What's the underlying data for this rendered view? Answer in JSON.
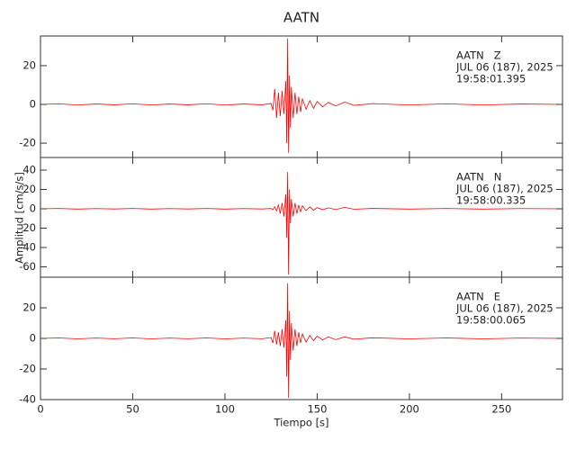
{
  "chart_data": [
    {
      "type": "line",
      "title": "AATN",
      "annotations": [
        "AATN   Z",
        "JUL 06 (187), 2025",
        "19:58:01.395"
      ],
      "x": [
        0,
        10,
        20,
        30,
        40,
        50,
        60,
        70,
        80,
        90,
        100,
        110,
        120,
        125,
        126,
        127,
        128,
        129,
        130,
        131,
        132,
        133,
        133.5,
        134,
        134.5,
        135,
        135.5,
        136,
        137,
        138,
        139,
        140,
        141,
        142,
        144,
        146,
        148,
        150,
        153,
        156,
        160,
        165,
        170,
        180,
        200,
        220,
        240,
        260,
        283
      ],
      "series": [
        {
          "color": "#ff0000",
          "values": [
            0,
            0.3,
            -0.3,
            0.2,
            -0.2,
            0.3,
            -0.3,
            0.2,
            -0.2,
            0.3,
            -0.3,
            0.2,
            -0.2,
            0.5,
            -3,
            8,
            -7,
            6,
            -6,
            7,
            -5,
            12,
            -20,
            34,
            -25,
            15,
            -12,
            9,
            -7,
            6,
            -5,
            4,
            -4,
            3,
            -2.5,
            2,
            -2,
            1.5,
            -1.2,
            1,
            -0.8,
            1.2,
            -0.5,
            0.4,
            -0.3,
            0.3,
            -0.3,
            0.2,
            0
          ]
        }
      ],
      "xlim": [
        0,
        283
      ],
      "xticks": [
        0,
        50,
        100,
        150,
        200,
        250
      ],
      "ylim": [
        -27.4,
        35.3
      ],
      "yticks": [
        -20,
        0,
        20
      ]
    },
    {
      "type": "line",
      "y_label": "Amplitud [cm/s/s]",
      "annotations": [
        "AATN   N",
        "JUL 06 (187), 2025",
        "19:58:00.335"
      ],
      "x": [
        0,
        10,
        20,
        30,
        40,
        50,
        60,
        70,
        80,
        90,
        100,
        110,
        120,
        125,
        126,
        127,
        128,
        129,
        130,
        131,
        132,
        133,
        133.5,
        134,
        134.5,
        135,
        135.5,
        136,
        137,
        138,
        139,
        140,
        141,
        142,
        144,
        146,
        148,
        150,
        153,
        156,
        160,
        165,
        170,
        180,
        200,
        220,
        240,
        260,
        283
      ],
      "series": [
        {
          "color": "#ff0000",
          "values": [
            0,
            0.3,
            -0.3,
            0.2,
            -0.2,
            0.3,
            -0.3,
            0.2,
            -0.2,
            0.3,
            -0.3,
            0.2,
            -0.2,
            0.3,
            -1,
            2,
            -2,
            4,
            -5,
            6,
            -8,
            15,
            -30,
            38,
            -68,
            20,
            -15,
            10,
            -8,
            6,
            -5,
            4,
            -3,
            3,
            -2,
            2,
            -1.5,
            1.2,
            -1,
            1,
            -0.8,
            1.5,
            -0.5,
            0.4,
            -0.3,
            0.3,
            -0.3,
            0.2,
            0
          ]
        }
      ],
      "xlim": [
        0,
        283
      ],
      "xticks": [
        0,
        50,
        100,
        150,
        200,
        250
      ],
      "ylim": [
        -70.7,
        53
      ],
      "yticks": [
        -60,
        -40,
        -20,
        0,
        20,
        40
      ]
    },
    {
      "type": "line",
      "x_label": "Tiempo [s]",
      "annotations": [
        "AATN   E",
        "JUL 06 (187), 2025",
        "19:58:00.065"
      ],
      "x": [
        0,
        10,
        20,
        30,
        40,
        50,
        60,
        70,
        80,
        90,
        100,
        110,
        120,
        125,
        126,
        127,
        128,
        129,
        130,
        131,
        132,
        133,
        133.5,
        134,
        134.5,
        135,
        135.5,
        136,
        137,
        138,
        139,
        140,
        141,
        142,
        144,
        146,
        148,
        150,
        153,
        156,
        160,
        165,
        170,
        180,
        200,
        220,
        240,
        260,
        283
      ],
      "series": [
        {
          "color": "#ff0000",
          "values": [
            0,
            0.3,
            -0.3,
            0.2,
            -0.2,
            0.3,
            -0.3,
            0.2,
            -0.2,
            0.3,
            -0.3,
            0.2,
            -0.2,
            0.5,
            -3,
            5,
            -4,
            4,
            -5,
            6,
            -6,
            12,
            -25,
            36,
            -39,
            18,
            -14,
            10,
            -8,
            6,
            -5,
            4,
            -3,
            3,
            -2.5,
            2,
            -1.5,
            1.5,
            -1,
            1,
            -0.8,
            1,
            -0.5,
            0.4,
            -0.3,
            0.3,
            -0.3,
            0.2,
            0
          ]
        }
      ],
      "xlim": [
        0,
        283
      ],
      "xticks": [
        0,
        50,
        100,
        150,
        200,
        250
      ],
      "ylim": [
        -40,
        40
      ],
      "yticks": [
        -40,
        -20,
        0,
        20
      ]
    }
  ]
}
